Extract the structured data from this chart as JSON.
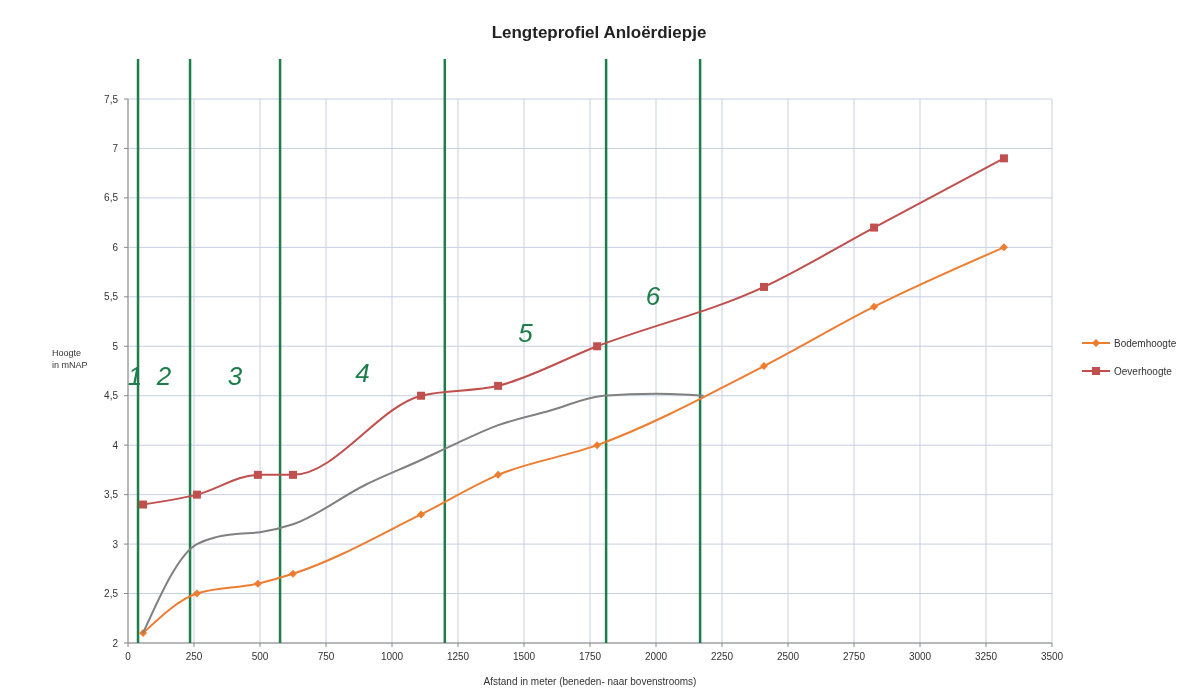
{
  "chart_data": {
    "type": "line",
    "title": "Lengteprofiel Anloërdiepje",
    "xlabel": "Afstand in meter (beneden- naar bovenstrooms)",
    "ylabel": "Hoogte in mNAP",
    "xlim": [
      0,
      3500
    ],
    "xticks": [
      0,
      250,
      500,
      750,
      1000,
      1250,
      1500,
      1750,
      2000,
      2250,
      2500,
      2750,
      3000,
      3250,
      3500
    ],
    "ylim": [
      2,
      7.5
    ],
    "yticks": [
      2,
      {
        "value": 2.5,
        "label": "2,5"
      },
      3,
      {
        "value": 3.5,
        "label": "3,5"
      },
      4,
      {
        "value": 4.5,
        "label": "4,5"
      },
      5,
      {
        "value": 5.5,
        "label": "5,5"
      },
      6,
      {
        "value": 6.5,
        "label": "6,5"
      },
      7,
      {
        "value": 7.5,
        "label": "7,5"
      }
    ],
    "grid": true,
    "legend": "right",
    "line_style": "solid",
    "series": [
      {
        "name": "Bodemhoogte",
        "color": "#ed7d31",
        "marker": "diamond",
        "x": [
          57,
          261,
          492,
          625,
          1110,
          1402,
          1777,
          2409,
          2826,
          3318
        ],
        "values": [
          2.1,
          2.5,
          2.6,
          2.7,
          3.3,
          3.7,
          4.0,
          4.8,
          5.4,
          6.0
        ]
      },
      {
        "name": "Oeverhoogte",
        "color": "#c0504d",
        "marker": "square",
        "x": [
          57,
          261,
          492,
          625,
          1110,
          1402,
          1777,
          2409,
          2826,
          3318
        ],
        "values": [
          3.4,
          3.5,
          3.7,
          3.7,
          4.5,
          4.6,
          5.0,
          5.6,
          6.2,
          6.9
        ]
      },
      {
        "color": "#808080",
        "marker": "none",
        "x": [
          57,
          261,
          400,
          500,
          625,
          900,
          1110,
          1230,
          1400,
          1600,
          1800,
          2000,
          2180
        ],
        "values": [
          2.1,
          3.0,
          3.1,
          3.12,
          3.2,
          3.6,
          3.85,
          4.0,
          4.2,
          4.35,
          4.5,
          4.52,
          4.5
        ]
      }
    ],
    "ref_lines": [
      {
        "axis": "x",
        "value": 38,
        "color": "#1e7d4a"
      },
      {
        "axis": "x",
        "value": 235,
        "color": "#1e7d4a"
      },
      {
        "axis": "x",
        "value": 576,
        "color": "#1e7d4a"
      },
      {
        "axis": "x",
        "value": 1200,
        "color": "#1e7d4a"
      },
      {
        "axis": "x",
        "value": 1811,
        "color": "#1e7d4a"
      },
      {
        "axis": "x",
        "value": 2167,
        "color": "#1e7d4a"
      }
    ],
    "annotations": [
      "1",
      "2",
      "3",
      "4",
      "5",
      "6"
    ]
  }
}
